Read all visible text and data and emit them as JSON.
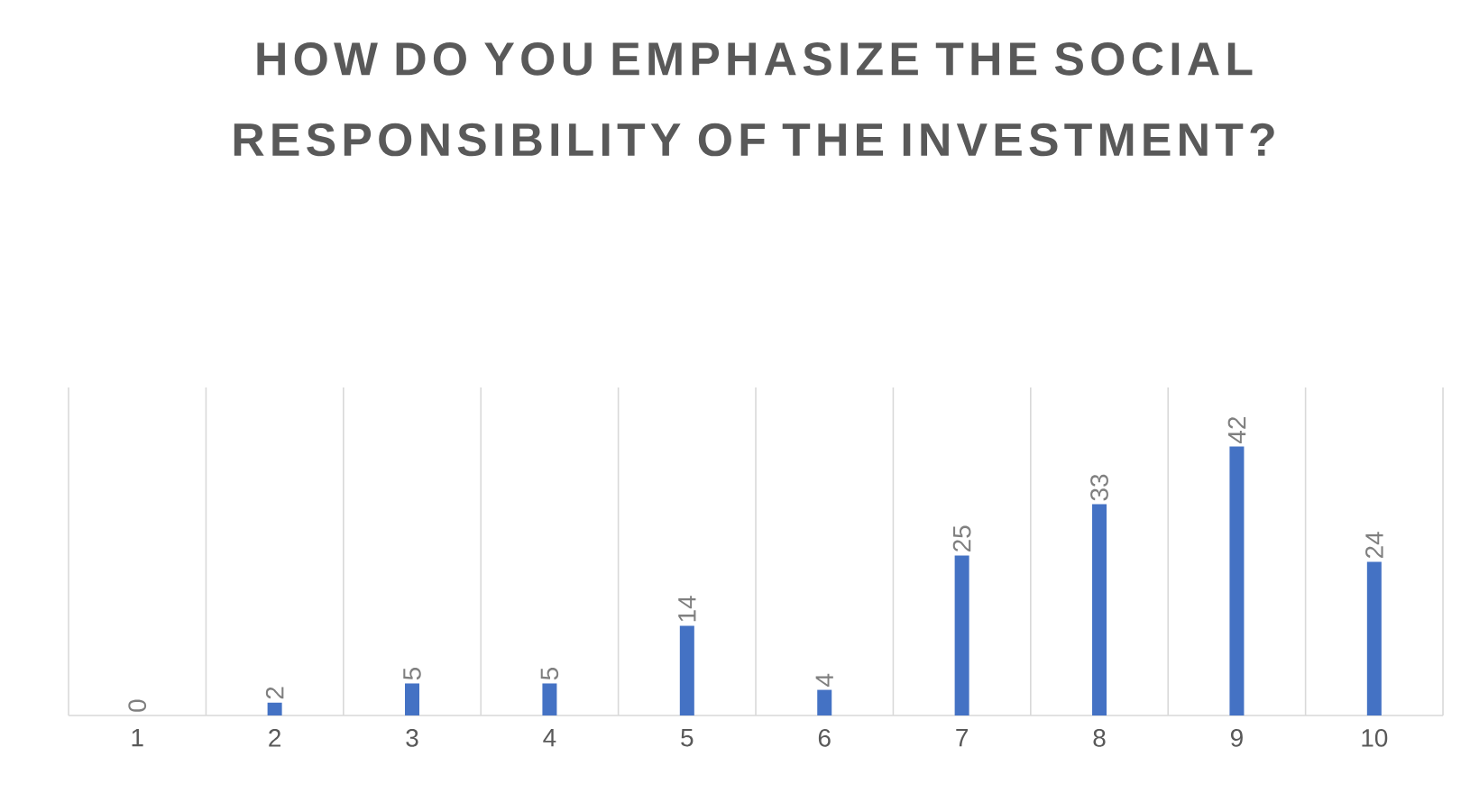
{
  "chart_data": {
    "type": "bar",
    "title": "HOW DO YOU EMPHASIZE THE SOCIAL RESPONSIBILITY OF THE INVESTMENT?",
    "categories": [
      "1",
      "2",
      "3",
      "4",
      "5",
      "6",
      "7",
      "8",
      "9",
      "10"
    ],
    "values": [
      0,
      2,
      5,
      5,
      14,
      4,
      25,
      33,
      42,
      24
    ],
    "color": "#4472c4",
    "data_labels": true,
    "grid": "x"
  }
}
